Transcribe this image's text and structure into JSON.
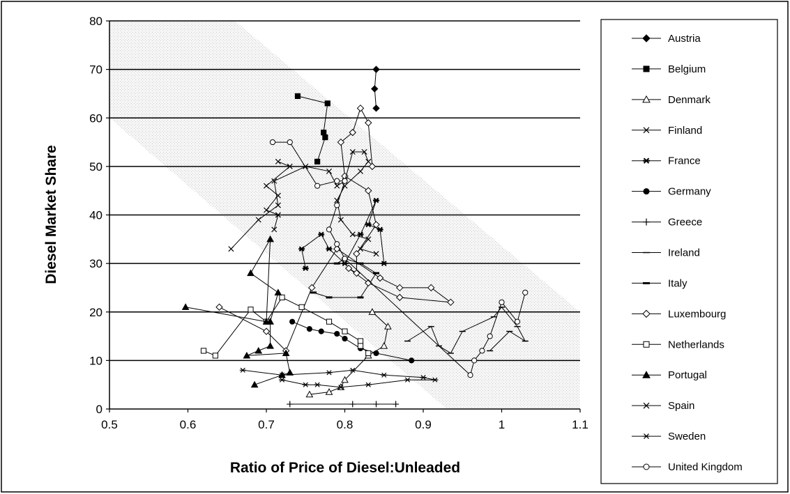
{
  "chart_data": {
    "type": "scatter",
    "title": "",
    "xlabel": "Ratio of Price of Diesel:Unleaded",
    "ylabel": "Diesel Market Share",
    "xlim": [
      0.5,
      1.1
    ],
    "ylim": [
      0,
      80
    ],
    "x_ticks": [
      "0.5",
      "0.6",
      "0.7",
      "0.8",
      "0.9",
      "1",
      "1.1"
    ],
    "y_ticks": [
      "0",
      "10",
      "20",
      "30",
      "40",
      "50",
      "60",
      "70",
      "80"
    ],
    "grid": "horizontal",
    "legend_position": "right",
    "band": {
      "top_left": [
        0.5,
        80
      ],
      "top_right": [
        0.66,
        80
      ],
      "bottom_right": [
        1.1,
        20
      ],
      "bottom_left": [
        0.93,
        0
      ],
      "left_bottom": [
        0.5,
        60
      ],
      "low_right": [
        0.96,
        0
      ]
    },
    "series": [
      {
        "name": "Austria",
        "marker": "diamond",
        "fill": "filled",
        "points": [
          [
            0.84,
            70
          ],
          [
            0.838,
            66
          ],
          [
            0.84,
            62
          ]
        ]
      },
      {
        "name": "Belgium",
        "marker": "square",
        "fill": "filled",
        "points": [
          [
            0.74,
            64.5
          ],
          [
            0.778,
            63
          ],
          [
            0.773,
            57
          ],
          [
            0.775,
            56
          ],
          [
            0.765,
            51
          ]
        ]
      },
      {
        "name": "Denmark",
        "marker": "triangle",
        "fill": "open",
        "points": [
          [
            0.755,
            3
          ],
          [
            0.78,
            3.5
          ],
          [
            0.795,
            4.5
          ],
          [
            0.8,
            6
          ],
          [
            0.83,
            11
          ],
          [
            0.85,
            13
          ],
          [
            0.855,
            17
          ],
          [
            0.835,
            20
          ]
        ]
      },
      {
        "name": "Finland",
        "marker": "x",
        "fill": "open",
        "points": [
          [
            0.715,
            51
          ],
          [
            0.73,
            50
          ],
          [
            0.7,
            46
          ],
          [
            0.715,
            44
          ],
          [
            0.7,
            41
          ],
          [
            0.715,
            40
          ],
          [
            0.71,
            37
          ]
        ]
      },
      {
        "name": "France",
        "marker": "asterisk",
        "fill": "filled",
        "points": [
          [
            0.75,
            29
          ],
          [
            0.745,
            33
          ],
          [
            0.77,
            36
          ],
          [
            0.78,
            33
          ],
          [
            0.8,
            30
          ],
          [
            0.82,
            36
          ],
          [
            0.84,
            43
          ],
          [
            0.83,
            38
          ],
          [
            0.845,
            37
          ],
          [
            0.85,
            30
          ]
        ]
      },
      {
        "name": "Germany",
        "marker": "circle",
        "fill": "filled",
        "points": [
          [
            0.733,
            18
          ],
          [
            0.755,
            16.5
          ],
          [
            0.77,
            16
          ],
          [
            0.79,
            15.5
          ],
          [
            0.8,
            14.5
          ],
          [
            0.82,
            12.5
          ],
          [
            0.84,
            11.5
          ],
          [
            0.885,
            10
          ]
        ]
      },
      {
        "name": "Greece",
        "marker": "plus",
        "fill": "open",
        "points": [
          [
            0.73,
            1
          ],
          [
            0.81,
            1
          ],
          [
            0.84,
            1
          ],
          [
            0.865,
            1
          ]
        ]
      },
      {
        "name": "Ireland",
        "marker": "dash",
        "fill": "open",
        "points": [
          [
            0.88,
            14
          ],
          [
            0.91,
            17
          ],
          [
            0.92,
            13
          ],
          [
            0.935,
            11.5
          ],
          [
            0.95,
            16
          ],
          [
            0.99,
            19
          ],
          [
            1.0,
            21
          ],
          [
            1.02,
            17
          ],
          [
            1.03,
            14
          ],
          [
            1.01,
            16
          ],
          [
            0.985,
            12
          ]
        ]
      },
      {
        "name": "Italy",
        "marker": "dash",
        "fill": "filled",
        "points": [
          [
            0.76,
            24
          ],
          [
            0.78,
            23
          ],
          [
            0.82,
            23
          ],
          [
            0.84,
            28
          ],
          [
            0.82,
            30
          ],
          [
            0.8,
            31
          ],
          [
            0.79,
            30
          ]
        ]
      },
      {
        "name": "Luxembourg",
        "marker": "diamond",
        "fill": "open",
        "points": [
          [
            0.64,
            21
          ],
          [
            0.7,
            16
          ],
          [
            0.725,
            12
          ],
          [
            0.758,
            25
          ],
          [
            0.79,
            33
          ],
          [
            0.845,
            27
          ],
          [
            0.87,
            25
          ],
          [
            0.91,
            25
          ],
          [
            0.935,
            22
          ],
          [
            0.87,
            23
          ],
          [
            0.83,
            26
          ],
          [
            0.805,
            29
          ],
          [
            0.815,
            28
          ],
          [
            0.815,
            32
          ],
          [
            0.84,
            38
          ],
          [
            0.83,
            45
          ],
          [
            0.8,
            48
          ],
          [
            0.795,
            55
          ],
          [
            0.81,
            57
          ],
          [
            0.82,
            62
          ],
          [
            0.83,
            59
          ],
          [
            0.835,
            50
          ]
        ]
      },
      {
        "name": "Netherlands",
        "marker": "square",
        "fill": "open",
        "points": [
          [
            0.62,
            12
          ],
          [
            0.635,
            11
          ],
          [
            0.68,
            20.5
          ],
          [
            0.7,
            18
          ],
          [
            0.72,
            23
          ],
          [
            0.745,
            21
          ],
          [
            0.78,
            18
          ],
          [
            0.8,
            16
          ],
          [
            0.82,
            14
          ],
          [
            0.82,
            13
          ],
          [
            0.83,
            11.5
          ]
        ]
      },
      {
        "name": "Portugal",
        "marker": "triangle",
        "fill": "filled",
        "points": [
          [
            0.597,
            21
          ],
          [
            0.7,
            18
          ],
          [
            0.705,
            35
          ],
          [
            0.68,
            28
          ],
          [
            0.715,
            24
          ],
          [
            0.705,
            18
          ],
          [
            0.705,
            13
          ],
          [
            0.69,
            12
          ],
          [
            0.675,
            11
          ],
          [
            0.725,
            11.5
          ],
          [
            0.73,
            7.5
          ],
          [
            0.72,
            7
          ],
          [
            0.685,
            5
          ]
        ]
      },
      {
        "name": "Spain",
        "marker": "x",
        "fill": "open",
        "points": [
          [
            0.655,
            33
          ],
          [
            0.69,
            39
          ],
          [
            0.715,
            42
          ],
          [
            0.71,
            47
          ],
          [
            0.75,
            50
          ],
          [
            0.78,
            49
          ],
          [
            0.79,
            46
          ],
          [
            0.8,
            47
          ],
          [
            0.81,
            53
          ],
          [
            0.825,
            53
          ],
          [
            0.83,
            51
          ],
          [
            0.82,
            49
          ],
          [
            0.8,
            46
          ],
          [
            0.79,
            43
          ],
          [
            0.795,
            39
          ],
          [
            0.81,
            36
          ],
          [
            0.83,
            35
          ],
          [
            0.82,
            33
          ],
          [
            0.84,
            32
          ]
        ]
      },
      {
        "name": "Sweden",
        "marker": "asterisk",
        "fill": "open",
        "points": [
          [
            0.67,
            8
          ],
          [
            0.72,
            7
          ],
          [
            0.78,
            7.5
          ],
          [
            0.81,
            8
          ],
          [
            0.85,
            7
          ],
          [
            0.9,
            6.5
          ],
          [
            0.915,
            6
          ],
          [
            0.88,
            6
          ],
          [
            0.83,
            5
          ],
          [
            0.795,
            4.5
          ],
          [
            0.765,
            5
          ],
          [
            0.75,
            5
          ],
          [
            0.72,
            6
          ]
        ]
      },
      {
        "name": "United Kingdom",
        "marker": "circle",
        "fill": "open",
        "points": [
          [
            0.708,
            55
          ],
          [
            0.73,
            55
          ],
          [
            0.765,
            46
          ],
          [
            0.79,
            47
          ],
          [
            0.8,
            47
          ],
          [
            0.79,
            42
          ],
          [
            0.78,
            37
          ],
          [
            0.79,
            34
          ],
          [
            0.8,
            31
          ],
          [
            0.96,
            7
          ],
          [
            0.965,
            10
          ],
          [
            0.975,
            12
          ],
          [
            0.985,
            15
          ],
          [
            1.0,
            22
          ],
          [
            1.02,
            18
          ],
          [
            1.03,
            24
          ]
        ]
      }
    ]
  }
}
